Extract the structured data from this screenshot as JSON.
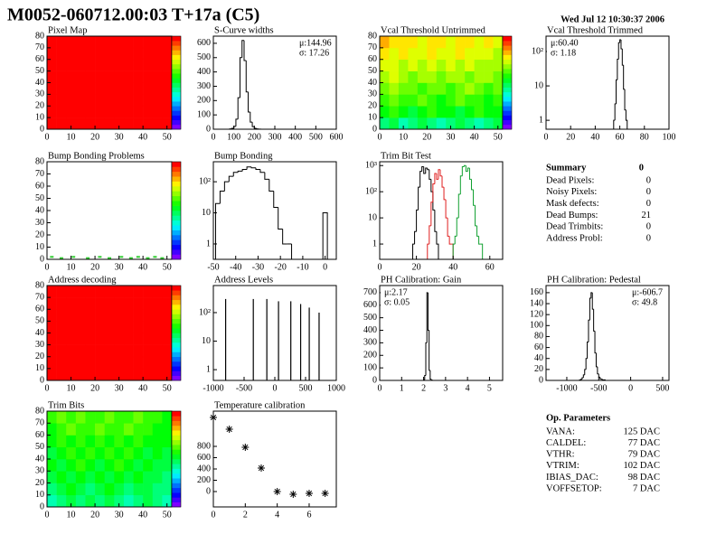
{
  "header": {
    "title": "M0052-060712.00:03 T+17a  (C5)",
    "date": "Wed Jul 12 10:30:37 2006"
  },
  "chart_data": [
    {
      "type": "heatmap",
      "title": "Pixel Map",
      "xlim": [
        0,
        52
      ],
      "ylim": [
        0,
        80
      ],
      "xticks": [
        0,
        10,
        20,
        30,
        40,
        50
      ],
      "yticks": [
        0,
        10,
        20,
        30,
        40,
        50,
        60,
        70,
        80
      ],
      "zlim": [
        0,
        100
      ],
      "colorbar": true,
      "z": [
        [
          100,
          100,
          100,
          100,
          100,
          100,
          100,
          100,
          100,
          100,
          100,
          100,
          100
        ],
        [
          100,
          100,
          100,
          100,
          100,
          100,
          100,
          100,
          100,
          100,
          100,
          100,
          100
        ],
        [
          100,
          100,
          100,
          100,
          100,
          100,
          100,
          100,
          100,
          100,
          100,
          100,
          100
        ],
        [
          100,
          100,
          100,
          100,
          100,
          100,
          100,
          100,
          100,
          100,
          100,
          100,
          100
        ],
        [
          100,
          100,
          100,
          100,
          100,
          100,
          100,
          100,
          100,
          100,
          100,
          100,
          100
        ],
        [
          100,
          100,
          100,
          100,
          100,
          100,
          100,
          100,
          100,
          100,
          100,
          100,
          100
        ],
        [
          100,
          100,
          100,
          100,
          100,
          100,
          100,
          100,
          100,
          100,
          100,
          100,
          100
        ],
        [
          100,
          100,
          100,
          100,
          100,
          100,
          100,
          100,
          100,
          100,
          100,
          100,
          100
        ]
      ]
    },
    {
      "type": "histogram",
      "title": "S-Curve widths",
      "xlim": [
        0,
        600
      ],
      "ylim": [
        0,
        650
      ],
      "xticks": [
        0,
        100,
        200,
        300,
        400,
        500,
        600
      ],
      "yticks": [
        0,
        100,
        200,
        300,
        400,
        500,
        600
      ],
      "stats": [
        "μ:144.96",
        "σ: 17.26"
      ],
      "stats_corner": "right",
      "series": [
        {
          "color": "#000000",
          "bins": [
            80,
            90,
            100,
            110,
            120,
            130,
            140,
            150,
            160,
            170,
            180,
            190,
            200,
            210,
            220,
            230
          ],
          "values": [
            2,
            6,
            20,
            70,
            220,
            500,
            620,
            480,
            260,
            120,
            50,
            18,
            6,
            2,
            1
          ]
        }
      ]
    },
    {
      "type": "heatmap",
      "title": "Vcal Threshold Untrimmed",
      "xlim": [
        0,
        52
      ],
      "ylim": [
        0,
        80
      ],
      "xticks": [
        0,
        10,
        20,
        30,
        40,
        50
      ],
      "yticks": [
        0,
        10,
        20,
        30,
        40,
        50,
        60,
        70,
        80
      ],
      "zlim": [
        0,
        100
      ],
      "colorbar": true,
      "z": [
        [
          45,
          50,
          40,
          45,
          50,
          45,
          40,
          45,
          50,
          45,
          40,
          45,
          50
        ],
        [
          55,
          60,
          55,
          50,
          55,
          60,
          55,
          55,
          50,
          55,
          60,
          55,
          55
        ],
        [
          60,
          65,
          60,
          60,
          65,
          60,
          55,
          60,
          65,
          60,
          60,
          55,
          60
        ],
        [
          65,
          70,
          65,
          65,
          60,
          65,
          65,
          60,
          65,
          70,
          65,
          60,
          65
        ],
        [
          70,
          75,
          70,
          65,
          70,
          70,
          65,
          70,
          70,
          65,
          70,
          70,
          65
        ],
        [
          75,
          75,
          70,
          75,
          70,
          75,
          70,
          75,
          70,
          75,
          70,
          70,
          70
        ],
        [
          80,
          75,
          80,
          75,
          75,
          80,
          75,
          75,
          80,
          75,
          75,
          75,
          70
        ],
        [
          85,
          80,
          80,
          80,
          75,
          80,
          80,
          75,
          80,
          80,
          75,
          80,
          75
        ]
      ]
    },
    {
      "type": "histogram",
      "title": "Vcal Threshold Trimmed",
      "log": true,
      "xlim": [
        0,
        100
      ],
      "ylim": [
        0.55,
        280
      ],
      "xticks": [
        0,
        20,
        40,
        60,
        80,
        100
      ],
      "yticks": [
        1,
        10,
        {
          "value": 100,
          "label": "10²"
        }
      ],
      "stats": [
        "μ:60.40",
        "σ: 1.18"
      ],
      "stats_corner": "left",
      "series": [
        {
          "color": "#000000",
          "bins": [
            55,
            56,
            57,
            58,
            59,
            60,
            61,
            62,
            63,
            64,
            65,
            66
          ],
          "values": [
            1,
            3,
            15,
            60,
            180,
            220,
            120,
            40,
            8,
            2,
            1
          ]
        }
      ]
    },
    {
      "type": "scatter",
      "title": "Bump Bonding Problems",
      "marker": "dot",
      "color": "#33cc33",
      "xlim": [
        0,
        52
      ],
      "ylim": [
        0,
        80
      ],
      "xticks": [
        0,
        10,
        20,
        30,
        40,
        50
      ],
      "yticks": [
        0,
        10,
        20,
        30,
        40,
        50,
        60,
        70,
        80
      ],
      "colorbar": true,
      "x": [
        2,
        6,
        11,
        17,
        22,
        26,
        31,
        35,
        38,
        42,
        45,
        48
      ],
      "values": [
        2,
        1,
        2,
        1,
        2,
        1,
        2,
        1,
        2,
        1,
        2,
        1
      ]
    },
    {
      "type": "histogram",
      "title": "Bump Bonding",
      "log": true,
      "xlim": [
        -50,
        5
      ],
      "ylim": [
        0.32,
        440
      ],
      "xticks": [
        -50,
        -40,
        -30,
        -20,
        -10,
        0
      ],
      "yticks": [
        1,
        10,
        {
          "value": 100,
          "label": "10²"
        }
      ],
      "series": [
        {
          "color": "#000000",
          "bins": [
            -49,
            -47,
            -45,
            -43,
            -41,
            -39,
            -37,
            -35,
            -33,
            -31,
            -29,
            -27,
            -25,
            -23,
            -21,
            -19,
            -17,
            -15,
            -13,
            -11,
            -9,
            -7,
            -5,
            -3,
            -1,
            1
          ],
          "values": [
            20,
            50,
            100,
            150,
            200,
            220,
            250,
            300,
            280,
            250,
            200,
            120,
            50,
            15,
            3,
            1,
            1,
            0,
            0,
            0,
            0,
            0,
            0,
            0,
            10
          ]
        }
      ]
    },
    {
      "type": "histogram",
      "title": "Trim Bit Test",
      "log": true,
      "xlim": [
        0,
        67
      ],
      "ylim": [
        0.26,
        1400
      ],
      "xticks": [
        0,
        20,
        40,
        60
      ],
      "yticks": [
        1,
        10,
        {
          "value": 100,
          "label": "10²"
        },
        {
          "value": 1000,
          "label": "10³"
        }
      ],
      "series": [
        {
          "color": "#000000",
          "bins": [
            18,
            19,
            20,
            21,
            22,
            23,
            24,
            25,
            26,
            27,
            28,
            29,
            30,
            31,
            32
          ],
          "values": [
            1,
            3,
            20,
            150,
            600,
            900,
            500,
            800,
            700,
            300,
            100,
            20,
            3,
            1
          ]
        },
        {
          "color": "#e02020",
          "bins": [
            26,
            27,
            28,
            29,
            30,
            31,
            32,
            33,
            34,
            35,
            36,
            37,
            38,
            39,
            40
          ],
          "values": [
            1,
            5,
            40,
            200,
            500,
            300,
            700,
            400,
            150,
            50,
            10,
            2,
            1,
            1
          ]
        },
        {
          "color": "#10a030",
          "bins": [
            40,
            41,
            42,
            43,
            44,
            45,
            46,
            47,
            48,
            49,
            50,
            51,
            52,
            53,
            54,
            55,
            56
          ],
          "values": [
            1,
            2,
            10,
            80,
            400,
            900,
            1000,
            600,
            800,
            300,
            120,
            30,
            5,
            2,
            1,
            1
          ]
        }
      ]
    },
    {
      "type": "heatmap",
      "title": "Address decoding",
      "xlim": [
        0,
        52
      ],
      "ylim": [
        0,
        80
      ],
      "xticks": [
        0,
        10,
        20,
        30,
        40,
        50
      ],
      "yticks": [
        0,
        10,
        20,
        30,
        40,
        50,
        60,
        70,
        80
      ],
      "zlim": [
        0,
        100
      ],
      "colorbar": true,
      "z": [
        [
          100,
          100,
          100,
          100,
          100,
          100,
          100,
          100,
          100,
          100,
          100,
          100,
          100
        ],
        [
          100,
          100,
          100,
          100,
          100,
          100,
          100,
          100,
          100,
          100,
          100,
          100,
          100
        ],
        [
          100,
          100,
          100,
          100,
          100,
          100,
          100,
          100,
          100,
          100,
          100,
          100,
          100
        ],
        [
          100,
          100,
          100,
          100,
          100,
          100,
          100,
          100,
          100,
          100,
          100,
          100,
          100
        ],
        [
          100,
          100,
          100,
          100,
          100,
          100,
          100,
          100,
          100,
          100,
          100,
          100,
          100
        ],
        [
          100,
          100,
          100,
          100,
          100,
          100,
          100,
          100,
          100,
          100,
          100,
          100,
          100
        ],
        [
          100,
          100,
          100,
          100,
          100,
          100,
          100,
          100,
          100,
          100,
          100,
          100,
          100
        ],
        [
          100,
          100,
          100,
          100,
          100,
          100,
          100,
          100,
          100,
          100,
          100,
          100,
          100
        ]
      ]
    },
    {
      "type": "spikes",
      "title": "Address Levels",
      "log": true,
      "xlim": [
        -1000,
        1000
      ],
      "ylim": [
        0.42,
        890
      ],
      "xticks": [
        -1000,
        -500,
        0,
        500,
        1000
      ],
      "yticks": [
        1,
        10,
        {
          "value": 100,
          "label": "10²"
        }
      ],
      "x": [
        -800,
        -350,
        -130,
        60,
        260,
        420,
        560,
        720
      ],
      "values": [
        300,
        300,
        300,
        250,
        250,
        200,
        150,
        100
      ],
      "color": "#000000"
    },
    {
      "type": "histogram",
      "title": "PH Calibration: Gain",
      "xlim": [
        0,
        5.6
      ],
      "ylim": [
        0,
        757
      ],
      "xticks": [
        0,
        1,
        2,
        3,
        4,
        5
      ],
      "yticks": [
        0,
        100,
        200,
        300,
        400,
        500,
        600,
        700
      ],
      "stats": [
        "μ:2.17",
        "σ: 0.05"
      ],
      "stats_corner": "left",
      "series": [
        {
          "color": "#000000",
          "bins": [
            2.0,
            2.05,
            2.1,
            2.15,
            2.2,
            2.25,
            2.3,
            2.35,
            2.4
          ],
          "values": [
            5,
            40,
            300,
            700,
            400,
            80,
            10,
            2
          ]
        }
      ]
    },
    {
      "type": "histogram",
      "title": "PH Calibration: Pedestal",
      "xlim": [
        -1325,
        600
      ],
      "ylim": [
        0,
        173
      ],
      "xticks": [
        -1000,
        -500,
        0,
        500
      ],
      "yticks": [
        0,
        20,
        40,
        60,
        80,
        100,
        120,
        140,
        160
      ],
      "stats": [
        "μ:-606.7",
        "σ: 49.8"
      ],
      "stats_corner": "right",
      "series": [
        {
          "color": "#000000",
          "bins": [
            -800,
            -780,
            -760,
            -740,
            -720,
            -700,
            -680,
            -660,
            -640,
            -620,
            -600,
            -580,
            -560,
            -540,
            -520,
            -500,
            -480,
            -460,
            -440,
            -420,
            -400
          ],
          "values": [
            1,
            2,
            5,
            10,
            20,
            40,
            70,
            110,
            150,
            160,
            130,
            90,
            50,
            25,
            12,
            6,
            3,
            2,
            1,
            1
          ]
        }
      ]
    },
    {
      "type": "heatmap",
      "title": "Trim Bits",
      "xlim": [
        0,
        52
      ],
      "ylim": [
        0,
        80
      ],
      "xticks": [
        0,
        10,
        20,
        30,
        40,
        50
      ],
      "yticks": [
        0,
        10,
        20,
        30,
        40,
        50,
        60,
        70,
        80
      ],
      "zlim": [
        0,
        100
      ],
      "colorbar": true,
      "z": [
        [
          40,
          45,
          50,
          45,
          50,
          45,
          50,
          45,
          40,
          45,
          50,
          45,
          40
        ],
        [
          45,
          50,
          55,
          50,
          45,
          50,
          55,
          50,
          45,
          50,
          50,
          45,
          45
        ],
        [
          50,
          55,
          50,
          55,
          50,
          55,
          50,
          55,
          50,
          55,
          50,
          50,
          45
        ],
        [
          55,
          50,
          55,
          60,
          55,
          50,
          55,
          60,
          55,
          50,
          55,
          50,
          50
        ],
        [
          50,
          55,
          60,
          55,
          60,
          55,
          60,
          55,
          60,
          55,
          50,
          55,
          50
        ],
        [
          55,
          60,
          55,
          60,
          55,
          60,
          55,
          60,
          55,
          60,
          55,
          55,
          55
        ],
        [
          55,
          60,
          65,
          60,
          60,
          65,
          60,
          60,
          65,
          60,
          60,
          55,
          55
        ],
        [
          60,
          65,
          60,
          65,
          60,
          60,
          65,
          60,
          60,
          65,
          60,
          60,
          55
        ]
      ]
    },
    {
      "type": "scatter",
      "title": "Temperature calibration",
      "marker": "star",
      "color": "#000000",
      "xlim": [
        0,
        7.7
      ],
      "ylim": [
        -272,
        1424
      ],
      "xticks": [
        0,
        2,
        4,
        6
      ],
      "yticks": [
        0,
        200,
        400,
        600,
        800
      ],
      "x": [
        0,
        1,
        2,
        3,
        4,
        5,
        6,
        7
      ],
      "values": [
        1312,
        1104,
        784,
        416,
        0,
        -48,
        -32,
        -32
      ]
    }
  ],
  "summary": {
    "title": "Summary",
    "total": "0",
    "rows": [
      {
        "label": "Dead Pixels:",
        "value": "0"
      },
      {
        "label": "Noisy Pixels:",
        "value": "0"
      },
      {
        "label": "Mask defects:",
        "value": "0"
      },
      {
        "label": "Dead Bumps:",
        "value": "21"
      },
      {
        "label": "Dead Trimbits:",
        "value": "0"
      },
      {
        "label": "Address Probl:",
        "value": "0"
      }
    ]
  },
  "op_parameters": {
    "title": "Op. Parameters",
    "rows": [
      {
        "label": "VANA:",
        "value": "125 DAC"
      },
      {
        "label": "CALDEL:",
        "value": "77 DAC"
      },
      {
        "label": "VTHR:",
        "value": "79 DAC"
      },
      {
        "label": "VTRIM:",
        "value": "102 DAC"
      },
      {
        "label": "IBIAS_DAC:",
        "value": "98 DAC"
      },
      {
        "label": "VOFFSETOP:",
        "value": "7 DAC"
      }
    ]
  }
}
